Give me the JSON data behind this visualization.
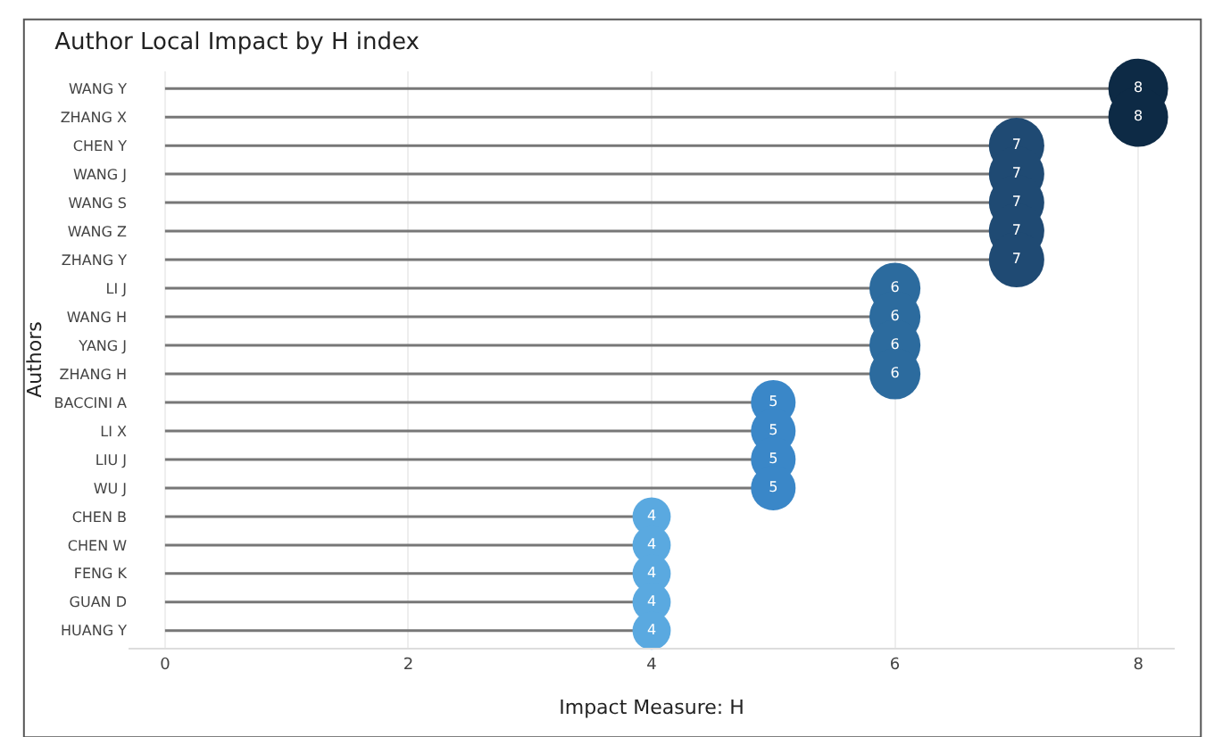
{
  "chart_data": {
    "type": "lollipop",
    "orientation": "horizontal",
    "title": "Author Local Impact by H index",
    "xlabel": "Impact Measure: H",
    "ylabel": "Authors",
    "categories": [
      "WANG Y",
      "ZHANG X",
      "CHEN Y",
      "WANG J",
      "WANG S",
      "WANG Z",
      "ZHANG Y",
      "LI J",
      "WANG H",
      "YANG J",
      "ZHANG H",
      "BACCINI A",
      "LI X",
      "LIU J",
      "WU J",
      "CHEN B",
      "CHEN W",
      "FENG K",
      "GUAN D",
      "HUANG Y"
    ],
    "values": [
      8,
      8,
      7,
      7,
      7,
      7,
      7,
      6,
      6,
      6,
      6,
      5,
      5,
      5,
      5,
      4,
      4,
      4,
      4,
      4
    ],
    "colors": [
      "#0d2a45",
      "#0d2a45",
      "#1f4a73",
      "#1f4a73",
      "#1f4a73",
      "#1f4a73",
      "#1f4a73",
      "#2c6b9e",
      "#2c6b9e",
      "#2c6b9e",
      "#2c6b9e",
      "#3a87c8",
      "#3a87c8",
      "#3a87c8",
      "#3a87c8",
      "#5aa9e0",
      "#5aa9e0",
      "#5aa9e0",
      "#5aa9e0",
      "#5aa9e0"
    ],
    "sizes": [
      1,
      1,
      0.86,
      0.86,
      0.86,
      0.86,
      0.86,
      0.73,
      0.73,
      0.73,
      0.73,
      0.56,
      0.56,
      0.56,
      0.56,
      0.41,
      0.41,
      0.41,
      0.41,
      0.41
    ],
    "xlim": [
      -0.3,
      8.3
    ],
    "xticks": [
      0,
      2,
      4,
      6,
      8
    ],
    "grid": "x",
    "data_labels": true,
    "marker": "circle"
  }
}
